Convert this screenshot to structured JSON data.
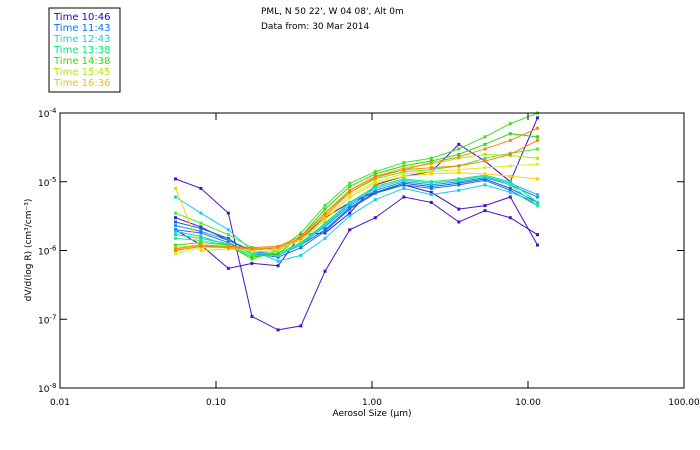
{
  "chart_data": {
    "type": "line",
    "title": "PML, N 50 22', W 04 08', Alt 0m",
    "subtitle": "Data from: 30 Mar 2014",
    "xlabel": "Aerosol Size (µm)",
    "ylabel": "dV/d(log R)  (cm³/cm⁻³)",
    "xscale": "log",
    "yscale": "log",
    "xlim": [
      0.01,
      100
    ],
    "ylim": [
      1e-08,
      0.0001
    ],
    "grid": false,
    "legend_position": "top-left",
    "x_ticks": [
      {
        "value": 0.01,
        "label": "0.01"
      },
      {
        "value": 0.1,
        "label": "0.10"
      },
      {
        "value": 1,
        "label": "1.00"
      },
      {
        "value": 10,
        "label": "10.00"
      },
      {
        "value": 100,
        "label": "100.00"
      }
    ],
    "y_ticks": [
      {
        "value": 0.0001,
        "base": "10",
        "exp": "-4"
      },
      {
        "value": 1e-05,
        "base": "10",
        "exp": "-5"
      },
      {
        "value": 1e-06,
        "base": "10",
        "exp": "-6"
      },
      {
        "value": 1e-07,
        "base": "10",
        "exp": "-7"
      },
      {
        "value": 1e-08,
        "base": "10",
        "exp": "-8"
      }
    ],
    "x": [
      0.055,
      0.08,
      0.12,
      0.17,
      0.25,
      0.35,
      0.5,
      0.72,
      1.05,
      1.6,
      2.4,
      3.6,
      5.3,
      7.7,
      11.5
    ],
    "legend": [
      {
        "label": "Time 10:46",
        "color": "#2200cc"
      },
      {
        "label": "Time 11:43",
        "color": "#0077ee"
      },
      {
        "label": "Time 12:43",
        "color": "#00dddd"
      },
      {
        "label": "Time 13:38",
        "color": "#00ee77"
      },
      {
        "label": "Time 14:38",
        "color": "#33dd00"
      },
      {
        "label": "Time 15:45",
        "color": "#aaee00"
      },
      {
        "label": "Time 16:36",
        "color": "#ffbb00"
      }
    ],
    "series": [
      {
        "name": "10:46 a",
        "color": "#4a10c8",
        "values": [
          1.1e-05,
          8e-06,
          3.5e-06,
          1.1e-07,
          7e-08,
          8e-08,
          5e-07,
          2e-06,
          3e-06,
          6e-06,
          5e-06,
          2.6e-06,
          3.8e-06,
          3e-06,
          1.7e-06
        ]
      },
      {
        "name": "10:46 b",
        "color": "#4a10c8",
        "values": [
          2e-06,
          1.2e-06,
          5.5e-07,
          6.5e-07,
          6e-07,
          1.7e-06,
          1.8e-06,
          3.5e-06,
          9e-06,
          1.2e-05,
          1.4e-05,
          3.5e-05,
          2e-05,
          1e-05,
          8.5e-05
        ]
      },
      {
        "name": "10:46 c",
        "color": "#4a10c8",
        "values": [
          3e-06,
          2.2e-06,
          1.4e-06,
          1e-06,
          1.1e-06,
          1.5e-06,
          3e-06,
          5e-06,
          7e-06,
          9e-06,
          7e-06,
          4e-06,
          4.5e-06,
          6e-06,
          1.2e-06
        ]
      },
      {
        "name": "11:43 a",
        "color": "#1060e0",
        "values": [
          2.6e-06,
          2.1e-06,
          1.5e-06,
          9e-07,
          8.5e-07,
          1.2e-06,
          2e-06,
          4.2e-06,
          7e-06,
          9.5e-06,
          8.5e-06,
          9.5e-06,
          1.1e-05,
          8e-06,
          5e-06
        ]
      },
      {
        "name": "11:43 b",
        "color": "#1890f0",
        "values": [
          2.3e-06,
          1.9e-06,
          1.4e-06,
          9.5e-07,
          9e-07,
          1.3e-06,
          2.2e-06,
          4.5e-06,
          7.5e-06,
          1e-05,
          9e-06,
          1e-05,
          1.15e-05,
          9e-06,
          6e-06
        ]
      },
      {
        "name": "11:43 c",
        "color": "#1a70e8",
        "values": [
          2e-06,
          1.8e-06,
          1.3e-06,
          9e-07,
          8e-07,
          1.1e-06,
          1.9e-06,
          4e-06,
          6.8e-06,
          9e-06,
          8e-06,
          9e-06,
          1.05e-05,
          7.5e-06,
          4.5e-06
        ]
      },
      {
        "name": "12:43 a",
        "color": "#10d0e8",
        "values": [
          6e-06,
          3.5e-06,
          2e-06,
          1e-06,
          7e-07,
          8.5e-07,
          1.5e-06,
          3.2e-06,
          5.5e-06,
          8e-06,
          6.5e-06,
          7.5e-06,
          9e-06,
          7e-06,
          5e-06
        ]
      },
      {
        "name": "12:43 b",
        "color": "#20c0f0",
        "values": [
          1.9e-06,
          1.6e-06,
          1.2e-06,
          8.5e-07,
          8.5e-07,
          1.2e-06,
          2.3e-06,
          4.8e-06,
          8e-06,
          1.05e-05,
          9.5e-06,
          1.05e-05,
          1.2e-05,
          9.5e-06,
          6.5e-06
        ]
      },
      {
        "name": "13:38 a",
        "color": "#10e090",
        "values": [
          1.7e-06,
          1.5e-06,
          1.25e-06,
          9e-07,
          9e-07,
          1.3e-06,
          2.5e-06,
          5e-06,
          8.5e-06,
          1.1e-05,
          1e-05,
          1.1e-05,
          1.25e-05,
          1e-05,
          5e-06
        ]
      },
      {
        "name": "13:38 b",
        "color": "#20e8a0",
        "values": [
          1.5e-06,
          1.4e-06,
          1.2e-06,
          8.5e-07,
          8.5e-07,
          1.25e-06,
          2.4e-06,
          5e-06,
          8e-06,
          1.05e-05,
          9.5e-06,
          1.05e-05,
          1.2e-05,
          9e-06,
          4.5e-06
        ]
      },
      {
        "name": "14:38 a",
        "color": "#40e020",
        "values": [
          1.2e-06,
          1.3e-06,
          1.2e-06,
          7.5e-07,
          1e-06,
          1.8e-06,
          4.5e-06,
          9.5e-06,
          1.4e-05,
          1.9e-05,
          2.2e-05,
          3e-05,
          4.5e-05,
          7e-05,
          0.0001
        ]
      },
      {
        "name": "14:38 b",
        "color": "#30d810",
        "values": [
          1e-06,
          1.15e-06,
          1.15e-06,
          8e-07,
          9e-07,
          1.6e-06,
          4e-06,
          8.5e-06,
          1.3e-05,
          1.7e-05,
          2e-05,
          2.5e-05,
          3.5e-05,
          5e-05,
          4.5e-05
        ]
      },
      {
        "name": "14:38 c",
        "color": "#50e830",
        "values": [
          3.5e-06,
          2.5e-06,
          1.7e-06,
          1.1e-06,
          1e-06,
          1.5e-06,
          3.5e-06,
          7e-06,
          1.1e-05,
          1.4e-05,
          1.5e-05,
          1.7e-05,
          2.2e-05,
          2.6e-05,
          3e-05
        ]
      },
      {
        "name": "15:45 a",
        "color": "#b0e810",
        "values": [
          1.1e-06,
          1.2e-06,
          1.15e-06,
          9.5e-07,
          1e-06,
          1.5e-06,
          3.5e-06,
          7.5e-06,
          1.2e-05,
          1.6e-05,
          1.8e-05,
          2.2e-05,
          2.5e-05,
          2.4e-05,
          2.2e-05
        ]
      },
      {
        "name": "15:45 b",
        "color": "#d8f020",
        "values": [
          9e-07,
          1.1e-06,
          1.1e-06,
          1e-06,
          1.05e-06,
          1.4e-06,
          3e-06,
          6.5e-06,
          1e-05,
          1.3e-05,
          1.4e-05,
          1.5e-05,
          1.6e-05,
          1.7e-05,
          1.8e-05
        ]
      },
      {
        "name": "16:36 a",
        "color": "#ffd000",
        "values": [
          8e-06,
          1e-06,
          1.05e-06,
          1.05e-06,
          1.1e-06,
          1.4e-06,
          2.8e-06,
          6e-06,
          9.5e-06,
          1.2e-05,
          1.3e-05,
          1.35e-05,
          1.3e-05,
          1.2e-05,
          1.1e-05
        ]
      },
      {
        "name": "16:36 b",
        "color": "#f09010",
        "values": [
          1e-06,
          1.15e-06,
          1.1e-06,
          1.05e-06,
          1.1e-06,
          1.5e-06,
          3.2e-06,
          7e-06,
          1.15e-05,
          1.5e-05,
          1.9e-05,
          2.3e-05,
          3e-05,
          4e-05,
          6e-05
        ]
      },
      {
        "name": "16:36 c",
        "color": "#ff8000",
        "values": [
          1.05e-06,
          1.2e-06,
          1.15e-06,
          1.1e-06,
          1.15e-06,
          1.6e-06,
          3.5e-06,
          7.5e-06,
          1.2e-05,
          1.5e-05,
          1.6e-05,
          1.7e-05,
          2e-05,
          2.5e-05,
          4e-05
        ]
      }
    ]
  }
}
